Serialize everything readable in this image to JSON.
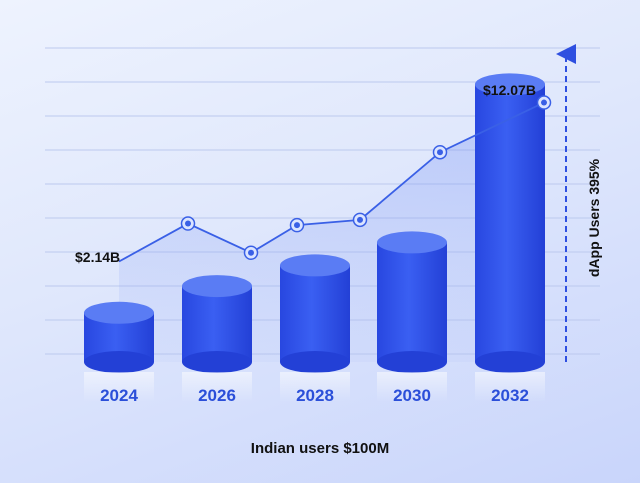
{
  "chart_data": {
    "type": "bar",
    "categories": [
      "2024",
      "2026",
      "2028",
      "2030",
      "2032"
    ],
    "values": [
      2.14,
      3.3,
      4.2,
      5.2,
      12.07
    ],
    "value_labels": {
      "first": "$2.14B",
      "last": "$12.07B"
    },
    "trend_line": [
      4.37,
      6.02,
      4.75,
      5.95,
      6.18,
      9.12,
      11.28
    ],
    "xlabel": "Indian users $100M",
    "side_label": "dApp Users  395%",
    "ylim": [
      0,
      14
    ],
    "grid": true
  },
  "colors": {
    "bar_body": "#2f55ec",
    "bar_body_light": "#4a6cf7",
    "bar_top": "#5a7cf4",
    "line": "#3a60e6",
    "year_text": "#2b4fd9",
    "arrow": "#2e4fe0",
    "grid": "#bcc9ee"
  }
}
